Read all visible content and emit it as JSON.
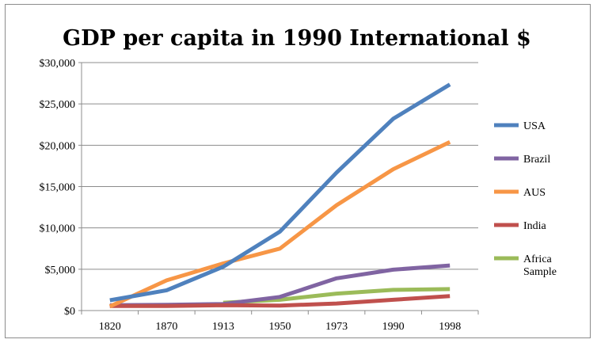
{
  "chart_data": {
    "type": "line",
    "title": "GDP per capita in 1990 International $",
    "xlabel": "",
    "ylabel": "",
    "categories": [
      "1820",
      "1870",
      "1913",
      "1950",
      "1973",
      "1990",
      "1998"
    ],
    "ylim": [
      0,
      30000
    ],
    "yticks": [
      "$0",
      "$5,000",
      "$10,000",
      "$15,000",
      "$20,000",
      "$25,000",
      "$30,000"
    ],
    "ytick_values": [
      0,
      5000,
      10000,
      15000,
      20000,
      25000,
      30000
    ],
    "grid": true,
    "legend_position": "right",
    "series": [
      {
        "name": "USA",
        "color": "#4f81bd",
        "values": [
          1250,
          2450,
          5300,
          9550,
          16700,
          23200,
          27350
        ]
      },
      {
        "name": "Brazil",
        "color": "#8064a2",
        "values": [
          650,
          700,
          800,
          1650,
          3900,
          4950,
          5450
        ]
      },
      {
        "name": "AUS",
        "color": "#f79646",
        "values": [
          500,
          3650,
          5700,
          7500,
          12750,
          17100,
          20400
        ]
      },
      {
        "name": "India",
        "color": "#c0504d",
        "values": [
          550,
          550,
          650,
          600,
          850,
          1300,
          1750
        ]
      },
      {
        "name": "Africa Sample",
        "name_lines": [
          "Africa",
          "Sample"
        ],
        "color": "#9bbb59",
        "values": [
          null,
          null,
          950,
          1300,
          2050,
          2500,
          2600
        ]
      }
    ]
  }
}
